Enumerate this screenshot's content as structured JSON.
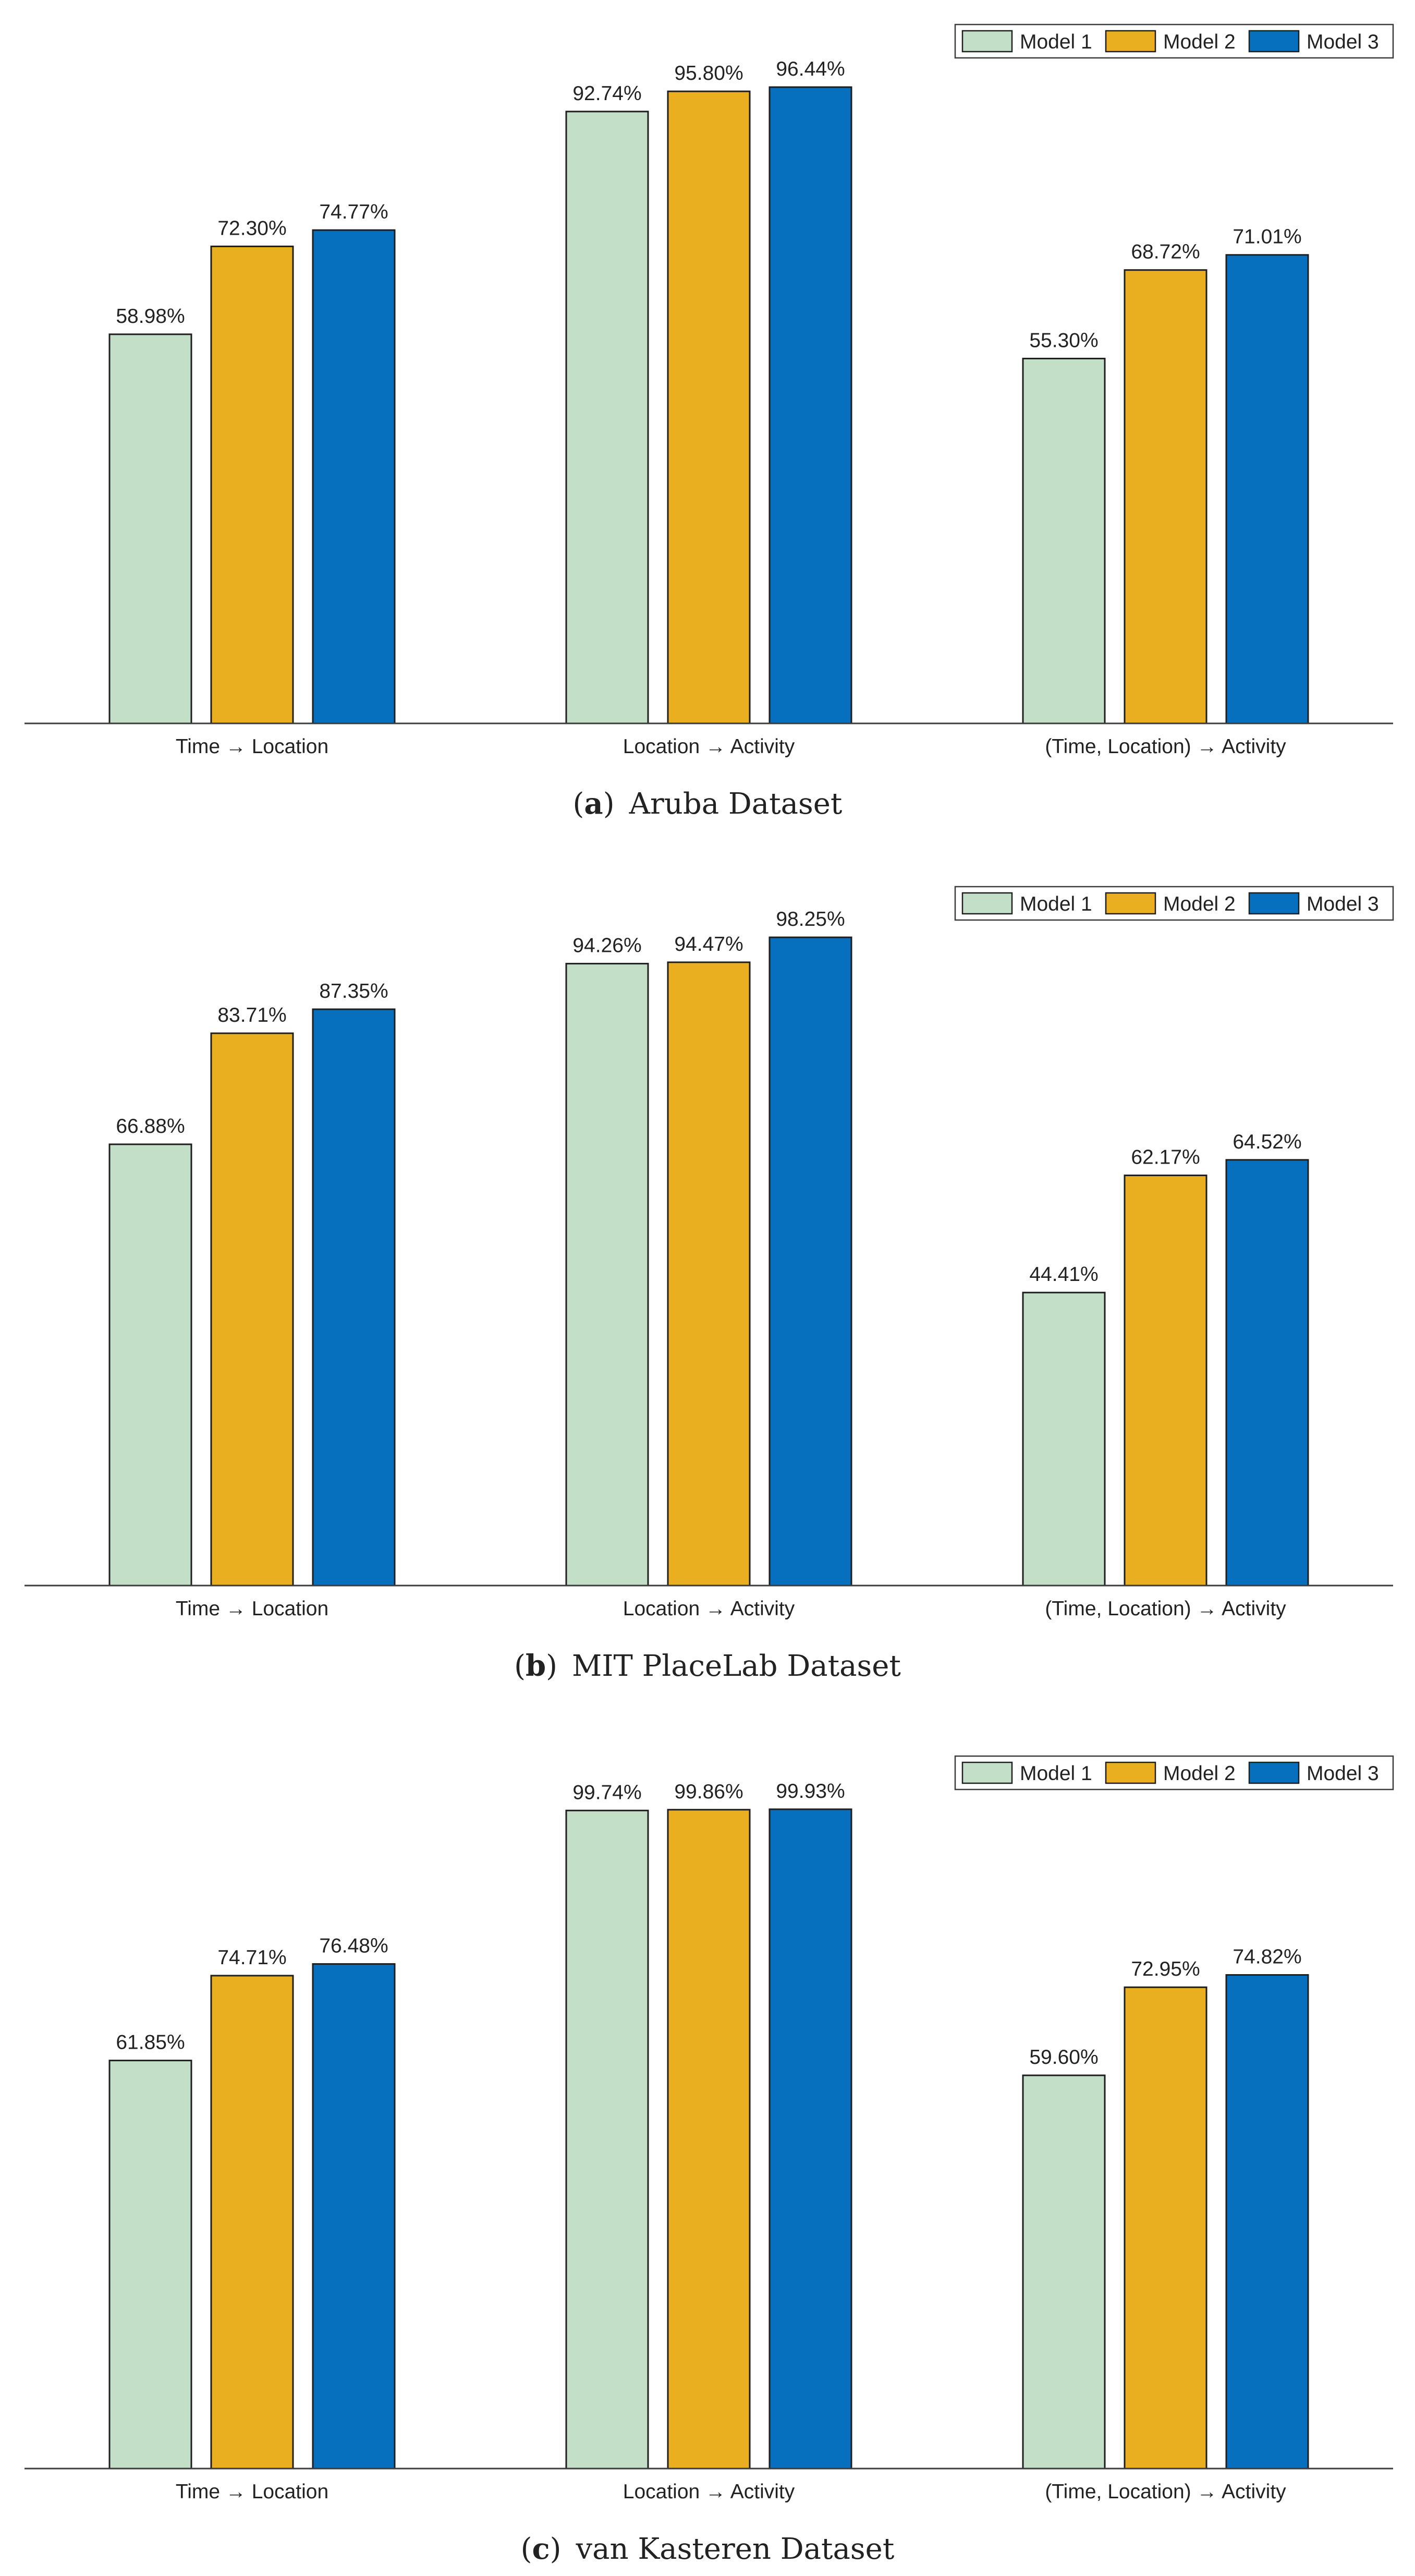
{
  "colors": {
    "model1": "#c3dfc8",
    "model2": "#eaae21",
    "model3": "#0670bf",
    "bar_stroke": "#1e1e1e",
    "axis": "#3c3c3c",
    "text": "#222222"
  },
  "chart_data": [
    {
      "type": "bar",
      "label": "(a)",
      "title": "Aruba Dataset",
      "categories": [
        "Time → Location",
        "Location → Activity",
        "(Time, Location) → Activity"
      ],
      "series": [
        {
          "name": "Model 1",
          "values": [
            58.98,
            92.74,
            55.3
          ],
          "labels": [
            "58.98%",
            "92.74%",
            "55.30%"
          ]
        },
        {
          "name": "Model 2",
          "values": [
            72.3,
            95.8,
            68.72
          ],
          "labels": [
            "72.30%",
            "95.80%",
            "68.72%"
          ]
        },
        {
          "name": "Model 3",
          "values": [
            74.77,
            96.44,
            71.01
          ],
          "labels": [
            "74.77%",
            "96.44%",
            "71.01%"
          ]
        }
      ],
      "ylim": [
        0,
        100
      ],
      "legend": "top-right"
    },
    {
      "type": "bar",
      "label": "(b)",
      "title": "MIT PlaceLab Dataset",
      "categories": [
        "Time → Location",
        "Location → Activity",
        "(Time, Location) → Activity"
      ],
      "series": [
        {
          "name": "Model 1",
          "values": [
            66.88,
            94.26,
            44.41
          ],
          "labels": [
            "66.88%",
            "94.26%",
            "44.41%"
          ]
        },
        {
          "name": "Model 2",
          "values": [
            83.71,
            94.47,
            62.17
          ],
          "labels": [
            "83.71%",
            "94.47%",
            "62.17%"
          ]
        },
        {
          "name": "Model 3",
          "values": [
            87.35,
            98.25,
            64.52
          ],
          "labels": [
            "87.35%",
            "98.25%",
            "64.52%"
          ]
        }
      ],
      "ylim": [
        0,
        100
      ],
      "legend": "top-right"
    },
    {
      "type": "bar",
      "label": "(c)",
      "title": "van Kasteren Dataset",
      "categories": [
        "Time → Location",
        "Location → Activity",
        "(Time, Location) → Activity"
      ],
      "series": [
        {
          "name": "Model 1",
          "values": [
            61.85,
            99.74,
            59.6
          ],
          "labels": [
            "61.85%",
            "99.74%",
            "59.60%"
          ]
        },
        {
          "name": "Model 2",
          "values": [
            74.71,
            99.86,
            72.95
          ],
          "labels": [
            "74.71%",
            "99.86%",
            "72.95%"
          ]
        },
        {
          "name": "Model 3",
          "values": [
            76.48,
            99.93,
            74.82
          ],
          "labels": [
            "76.48%",
            "99.93%",
            "74.82%"
          ]
        }
      ],
      "ylim": [
        0,
        100
      ],
      "legend": "top-right"
    }
  ]
}
